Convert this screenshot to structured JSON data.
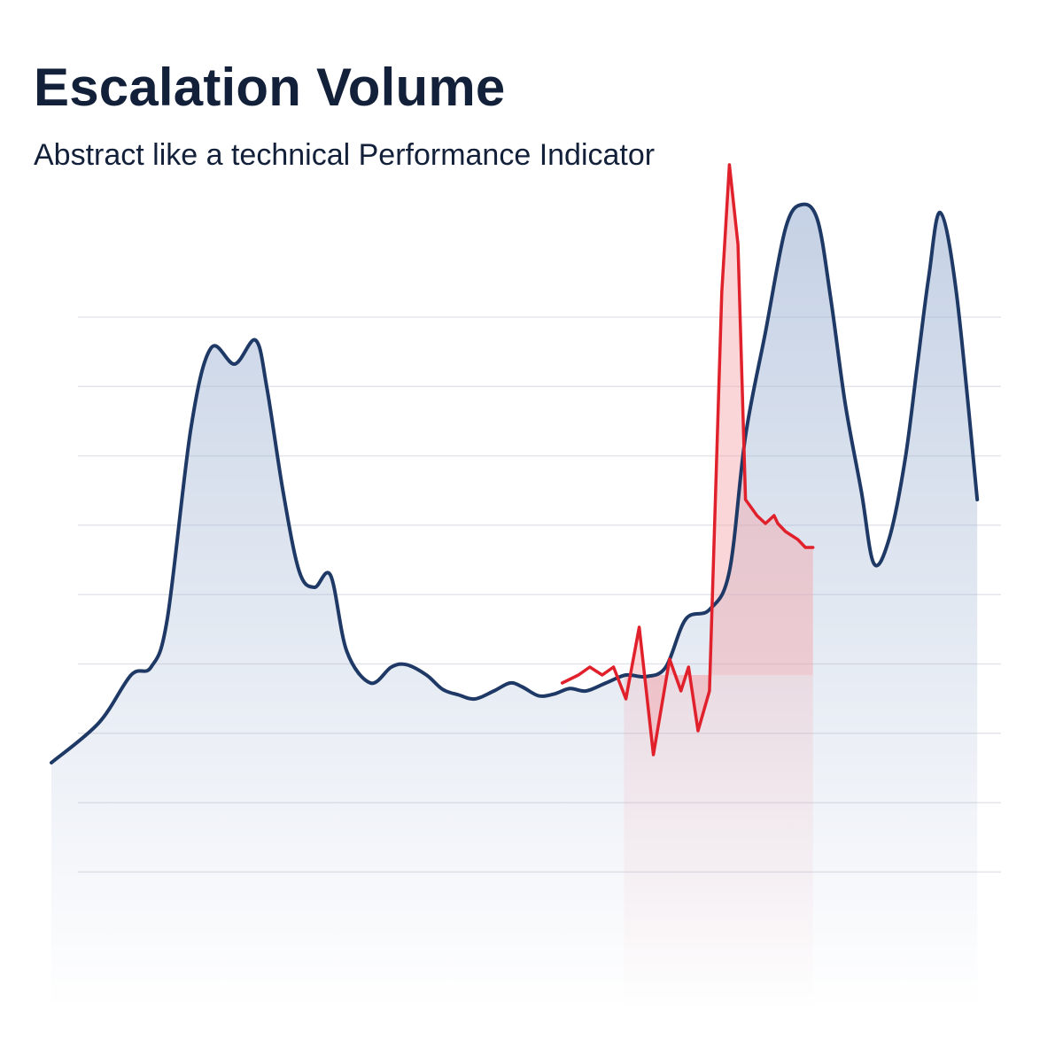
{
  "header": {
    "title": "Escalation Volume",
    "subtitle": "Abstract like a technical Performance Indicator"
  },
  "chart_data": {
    "type": "area",
    "title": "Escalation Volume",
    "subtitle": "Abstract like a technical Performance Indicator",
    "xlabel": "",
    "ylabel": "",
    "xlim": [
      0,
      100
    ],
    "ylim": [
      0,
      100
    ],
    "grid": true,
    "grid_lines": 9,
    "axes_visible": false,
    "legend": "none",
    "colors": {
      "main_line": "#1f3966",
      "main_fill": "#9fb3d3",
      "alert_line": "#e0202a",
      "alert_fill": "#f3a3a8",
      "grid": "#e3e5ea"
    },
    "series": [
      {
        "role": "main",
        "x": [
          0,
          5,
          8.4,
          10.5,
          12.2,
          14.7,
          16.8,
          19.3,
          21.5,
          22.7,
          24.4,
          26.1,
          27.7,
          29.4,
          31.1,
          33.6,
          35.8,
          37.4,
          39.5,
          41.2,
          42.9,
          44.6,
          46.6,
          48.3,
          49.6,
          51.3,
          52.9,
          54.6,
          56.3,
          58.4,
          60.5,
          62.6,
          64.7,
          66.8,
          69.3,
          71.4,
          73.1,
          75.2,
          77.3,
          79,
          80.7,
          82.1,
          83.6,
          85.3,
          86.6,
          88.2,
          89.9,
          91.2,
          92.4,
          93.6,
          95.3,
          97.5
        ],
        "y": [
          31,
          36,
          42,
          43,
          49,
          73,
          83,
          81,
          84,
          78,
          65,
          55,
          53,
          54.5,
          45,
          41,
          43,
          43.3,
          42,
          40.2,
          39.5,
          39,
          40,
          41,
          40.5,
          39.4,
          39.6,
          40.3,
          40,
          41,
          42,
          41.8,
          43,
          49,
          50.2,
          55,
          72,
          85,
          98,
          101,
          99,
          89,
          76,
          65,
          56,
          59,
          69,
          81,
          92,
          100,
          90,
          64
        ]
      },
      {
        "role": "alert",
        "x": [
          53.8,
          55.5,
          56.7,
          58,
          59.2,
          60.5,
          61.9,
          63.4,
          65.1,
          66.3,
          67.1,
          68.1,
          69.3,
          70.6,
          71.4,
          72.3,
          73.1,
          73.7,
          74.3,
          75.2,
          76.1,
          76.5,
          77.3,
          78.6,
          79.4,
          80.2
        ],
        "y": [
          41,
          42,
          43,
          42,
          43,
          39,
          48,
          32,
          44,
          40,
          43,
          35,
          40,
          90,
          106,
          96,
          64,
          63,
          62,
          61,
          62,
          61,
          60,
          59,
          58,
          58
        ]
      }
    ],
    "highlight_range": [
      60.3,
      80.2
    ]
  }
}
